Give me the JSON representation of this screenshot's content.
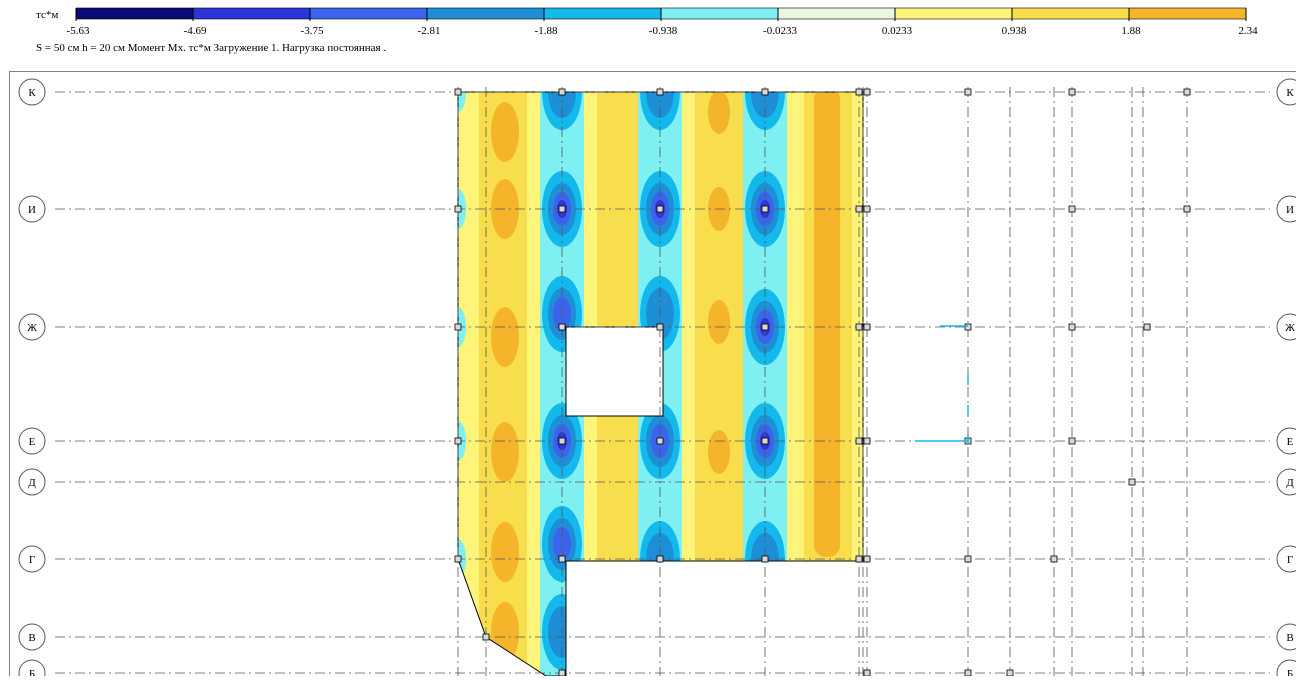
{
  "legend": {
    "unit": "тс*м",
    "ticks": [
      "-5.63",
      "-4.69",
      "-3.75",
      "-2.81",
      "-1.88",
      "-0.938",
      "-0.0233",
      "0.0233",
      "0.938",
      "1.88",
      "2.34"
    ],
    "colors": [
      "#0a0a78",
      "#2a35d8",
      "#3c63ec",
      "#1e8fd7",
      "#13b8ec",
      "#7ff0f2",
      "#e8f8e0",
      "#fff47a",
      "#f8de4c",
      "#f5b52a"
    ],
    "caption": "S =  50 см   h =  20 см   Момент Mx. тс*м   Загружение 1.    Нагрузка постоянная ."
  },
  "axes": {
    "rows": [
      "К",
      "И",
      "Ж",
      "Е",
      "Д",
      "Г",
      "В",
      "Б"
    ]
  },
  "contour_colors": {
    "base": "#fff47a",
    "warm": "#f8de4c",
    "hot": "#f5b52a",
    "cool": "#7ff0f2",
    "cold": "#13b8ec",
    "colder": "#1e8fd7",
    "deep": "#3c63ec",
    "deepest": "#2a35d8"
  }
}
